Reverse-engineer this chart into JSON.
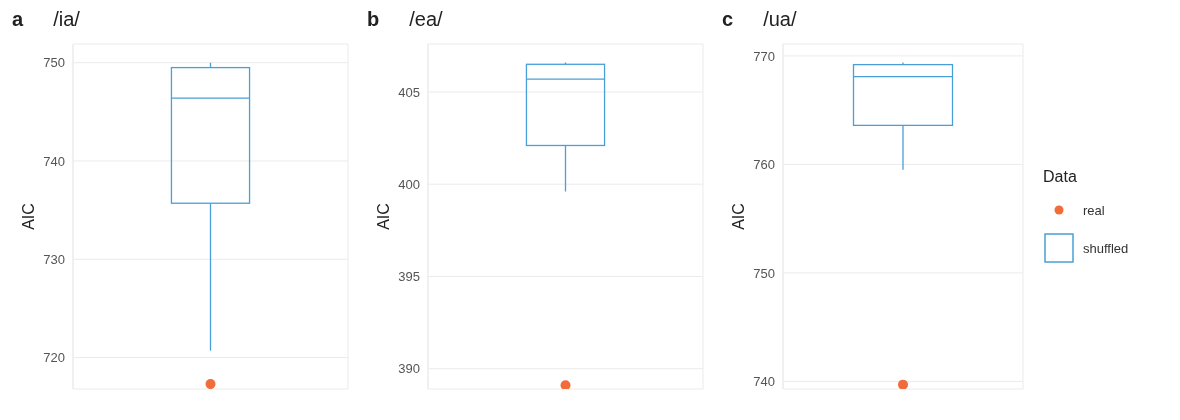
{
  "chart_data": [
    {
      "type": "box",
      "title": "/ia/",
      "annotations": [
        "a"
      ],
      "ylabel": "AIC",
      "categories": [
        null
      ],
      "ylim": [
        716.8,
        751.9
      ],
      "yticks": [
        720,
        730,
        740,
        750
      ],
      "grid": true,
      "tick_labels": "y",
      "series": [
        {
          "color": "#4a9fd8",
          "boxes": [
            {
              "low": 720.7,
              "q1": 735.7,
              "median": 746.4,
              "q3": 749.5,
              "high": 750
            }
          ]
        },
        {
          "type": "scatter",
          "color": "#f26b3a",
          "marker": "circle",
          "values": [
            717.3
          ]
        }
      ]
    },
    {
      "type": "box",
      "title": "/ea/",
      "annotations": [
        "b"
      ],
      "ylabel": "AIC",
      "categories": [
        null
      ],
      "ylim": [
        388.9,
        407.6
      ],
      "yticks": [
        390,
        395,
        400,
        405
      ],
      "grid": true,
      "tick_labels": "y",
      "series": [
        {
          "color": "#4a9fd8",
          "boxes": [
            {
              "low": 399.6,
              "q1": 402.1,
              "median": 405.7,
              "q3": 406.5,
              "high": 406.6
            }
          ]
        },
        {
          "type": "scatter",
          "color": "#f26b3a",
          "marker": "circle",
          "values": [
            389.1
          ]
        }
      ]
    },
    {
      "type": "box",
      "title": "/ua/",
      "annotations": [
        "c"
      ],
      "ylabel": "AIC",
      "categories": [
        null
      ],
      "ylim": [
        739.3,
        771.1
      ],
      "yticks": [
        740,
        750,
        760,
        770
      ],
      "grid": true,
      "tick_labels": "y",
      "legend": "right",
      "legend_title": "Data",
      "series": [
        {
          "type": "scatter",
          "name": "real",
          "color": "#f26b3a",
          "marker": "circle",
          "values": [
            739.7
          ]
        },
        {
          "name": "shuffled",
          "color": "#4a9fd8",
          "boxes": [
            {
              "low": 759.5,
              "q1": 763.6,
              "median": 768.1,
              "q3": 769.2,
              "high": 769.4
            }
          ]
        }
      ]
    }
  ]
}
